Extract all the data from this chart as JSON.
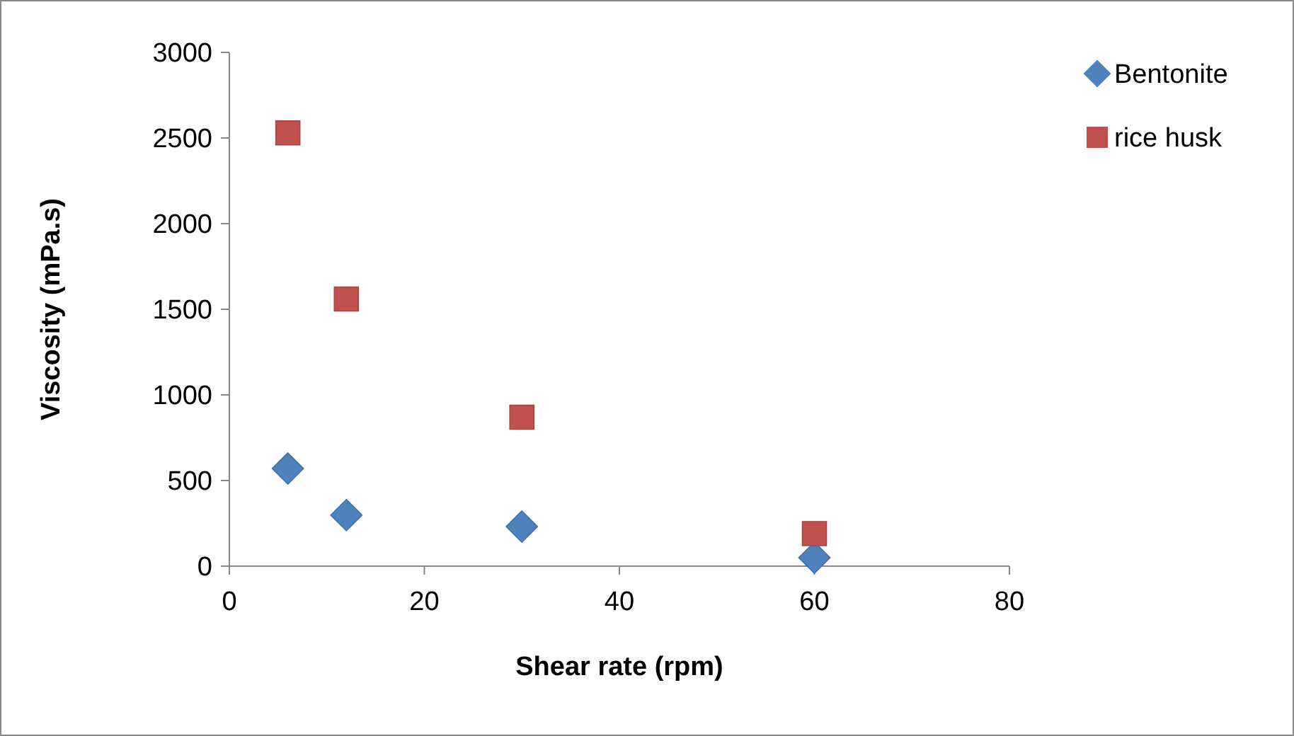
{
  "chart_data": {
    "type": "scatter",
    "xlabel": "Shear rate (rpm)",
    "ylabel": "Viscosity (mPa.s)",
    "xlim": [
      0,
      80
    ],
    "xticks": [
      0,
      20,
      40,
      60,
      80
    ],
    "ylim": [
      0,
      3000
    ],
    "yticks": [
      0,
      500,
      1000,
      1500,
      2000,
      2500,
      3000
    ],
    "grid": false,
    "legend": "right",
    "series": [
      {
        "name": "Bentonite",
        "color": "#4f81bd",
        "marker": "diamond",
        "x": [
          6,
          12,
          30,
          60
        ],
        "values": [
          570,
          298,
          231,
          50
        ]
      },
      {
        "name": "rice husk",
        "color": "#c0504d",
        "marker": "square",
        "x": [
          6,
          12,
          30,
          60
        ],
        "values": [
          2530,
          1560,
          870,
          190
        ]
      }
    ]
  }
}
